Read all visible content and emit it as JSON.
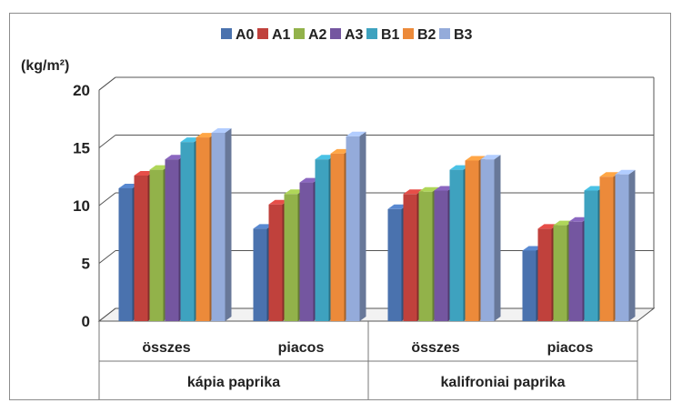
{
  "chart_data": {
    "type": "bar",
    "ylabel": "(kg/m²)",
    "ylim": [
      0,
      20
    ],
    "yticks": [
      "0",
      "5",
      "10",
      "15",
      "20"
    ],
    "groups": [
      {
        "label": "kápia paprika",
        "categories": [
          "összes",
          "piacos"
        ]
      },
      {
        "label": "kalifroniai paprika",
        "categories": [
          "összes",
          "piacos"
        ]
      }
    ],
    "categories": [
      "összes",
      "piacos",
      "összes",
      "piacos"
    ],
    "series": [
      {
        "name": "A0",
        "color": "#4a72ae",
        "values": [
          11.5,
          8.0,
          9.7,
          6.1
        ]
      },
      {
        "name": "A1",
        "color": "#c0413c",
        "values": [
          12.6,
          10.1,
          11.0,
          8.0
        ]
      },
      {
        "name": "A2",
        "color": "#92b24a",
        "values": [
          13.1,
          11.0,
          11.2,
          8.3
        ]
      },
      {
        "name": "A3",
        "color": "#7456a0",
        "values": [
          14.0,
          12.0,
          11.3,
          8.6
        ]
      },
      {
        "name": "B1",
        "color": "#3ea2bf",
        "values": [
          15.5,
          14.0,
          13.1,
          11.3
        ]
      },
      {
        "name": "B2",
        "color": "#ec8a3a",
        "values": [
          15.9,
          14.5,
          13.9,
          12.5
        ]
      },
      {
        "name": "B3",
        "color": "#94abda",
        "values": [
          16.3,
          16.0,
          14.0,
          12.7
        ]
      }
    ]
  }
}
